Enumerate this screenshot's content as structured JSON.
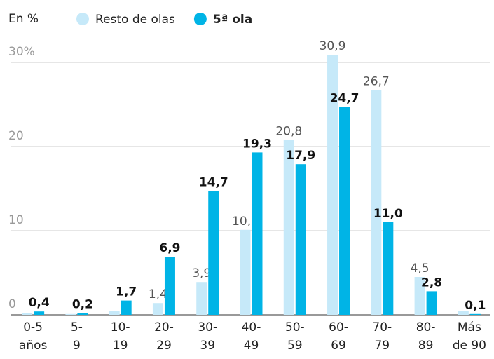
{
  "chart_data": {
    "type": "bar",
    "unit_label": "En %",
    "categories": [
      [
        "0-5",
        "años"
      ],
      [
        "5-",
        "9"
      ],
      [
        "10-",
        "19"
      ],
      [
        "20-",
        "29"
      ],
      [
        "30-",
        "39"
      ],
      [
        "40-",
        "49"
      ],
      [
        "50-",
        "59"
      ],
      [
        "60-",
        "69"
      ],
      [
        "70-",
        "79"
      ],
      [
        "80-",
        "89"
      ],
      [
        "Más",
        "de 90"
      ]
    ],
    "series": [
      {
        "name": "Resto de olas",
        "color": "#c6e9f9",
        "values": [
          0.2,
          0.1,
          0.5,
          1.4,
          3.9,
          10.1,
          20.8,
          30.9,
          26.7,
          4.5,
          0.5
        ],
        "value_labels": [
          null,
          null,
          null,
          "1,4",
          "3,9",
          "10,1",
          "20,8",
          "30,9",
          "26,7",
          "4,5",
          null
        ]
      },
      {
        "name": "5ª ola",
        "color": "#00b4e6",
        "values": [
          0.4,
          0.2,
          1.7,
          6.9,
          14.7,
          19.3,
          17.9,
          24.7,
          11.0,
          2.8,
          0.1
        ],
        "value_labels": [
          "0,4",
          "0,2",
          "1,7",
          "6,9",
          "14,7",
          "19,3",
          "17,9",
          "24,7",
          "11,0",
          "2,8",
          "0,1"
        ]
      }
    ],
    "ylim": [
      0,
      32.5
    ],
    "yticks": [
      0,
      10,
      20,
      {
        "value": 30,
        "label": "30%"
      }
    ],
    "grid": true
  }
}
